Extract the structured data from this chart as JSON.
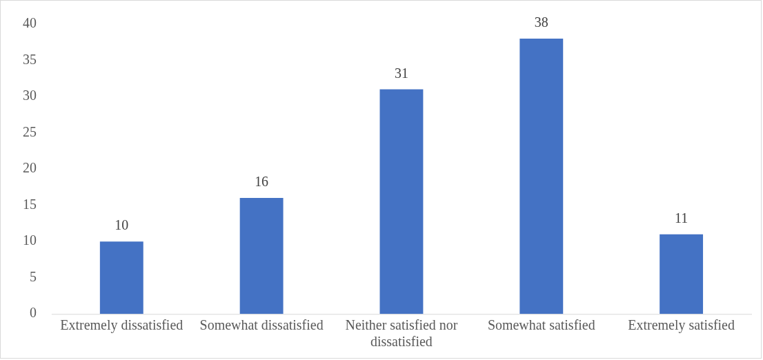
{
  "chart_data": {
    "type": "bar",
    "categories": [
      "Extremely dissatisfied",
      "Somewhat dissatisfied",
      "Neither satisfied nor dissatisfied",
      "Somewhat satisfied",
      "Extremely satisfied"
    ],
    "values": [
      10,
      16,
      31,
      38,
      11
    ],
    "color": "#4472c4",
    "ylim": [
      0,
      40
    ],
    "yticks": [
      0,
      5,
      10,
      15,
      20,
      25,
      30,
      35,
      40
    ],
    "grid": false,
    "legend": false,
    "data_labels": true
  }
}
